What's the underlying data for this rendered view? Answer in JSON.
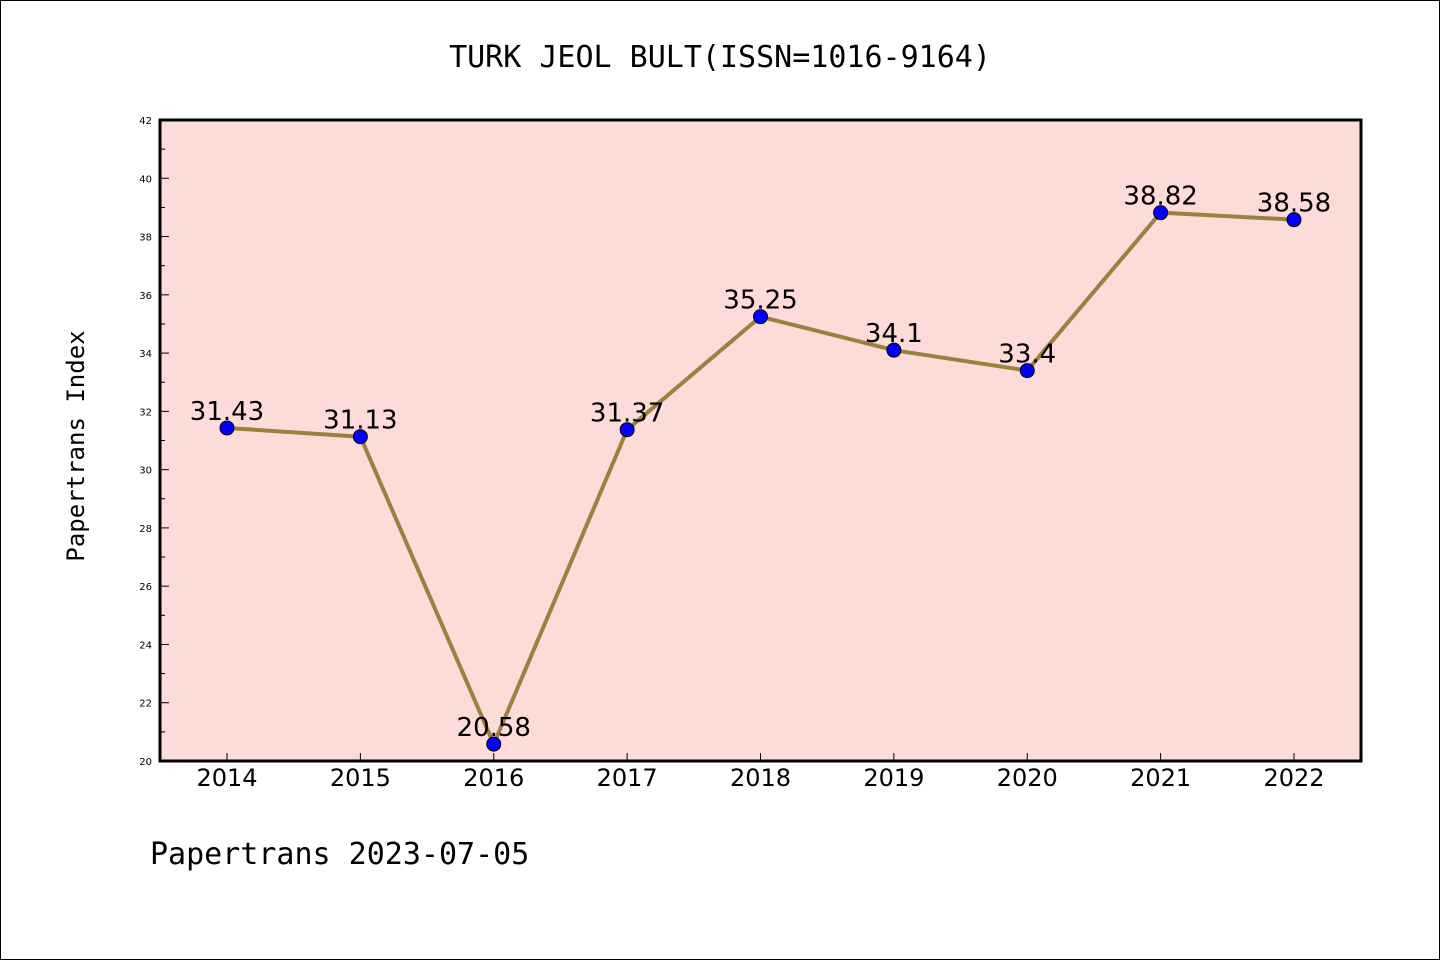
{
  "colors": {
    "plot_background": "#fddbd8",
    "line": "#9b8040",
    "marker": "#0000ff",
    "frame": "#000000"
  },
  "chart_data": {
    "type": "line",
    "title": "TURK JEOL BULT(ISSN=1016-9164)",
    "xlabel": "",
    "ylabel": "Papertrans Index",
    "categories": [
      "2014",
      "2015",
      "2016",
      "2017",
      "2018",
      "2019",
      "2020",
      "2021",
      "2022"
    ],
    "series": [
      {
        "values": [
          31.43,
          31.13,
          20.58,
          31.37,
          35.25,
          34.1,
          33.4,
          38.82,
          38.58
        ],
        "labels": [
          "31.43",
          "31.13",
          "20.58",
          "31.37",
          "35.25",
          "34.1",
          "33.4",
          "38.82",
          "38.58"
        ]
      }
    ],
    "ylim": [
      20,
      42
    ],
    "yticks": [
      "20",
      "22",
      "24",
      "26",
      "28",
      "30",
      "32",
      "34",
      "36",
      "38",
      "40",
      "42"
    ],
    "grid": false,
    "legend": "none"
  },
  "footer": "Papertrans 2023-07-05"
}
